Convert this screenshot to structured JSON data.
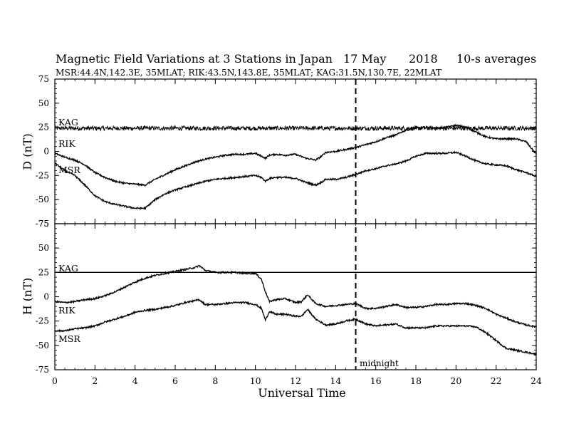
{
  "title": {
    "main": "Magnetic Field Variations at 3 Stations in Japan",
    "date": "17 May",
    "year": "2018",
    "averaging": "10-s averages"
  },
  "subtitle": "MSR:44.4N,142.3E, 35MLAT;  RIK:43.5N,143.8E, 35MLAT;  KAG:31.5N,130.7E, 22MLAT",
  "chart_data": [
    {
      "type": "line",
      "panel": "D",
      "ylabel": "D (nT)",
      "ylim": [
        -75,
        75
      ],
      "yticks": [
        "75",
        "50",
        "25",
        "0",
        "-25",
        "-50",
        "-75"
      ],
      "xlim": [
        0,
        24
      ],
      "dashed_marker_x": 15,
      "series": [
        {
          "name": "KAG",
          "noise": 2.2,
          "x": [
            0,
            24
          ],
          "y": [
            24,
            24
          ]
        },
        {
          "name": "RIK",
          "noise": 0.8,
          "x": [
            0,
            0.5,
            1,
            1.5,
            2,
            2.5,
            3,
            3.5,
            4,
            4.5,
            5,
            5.5,
            6,
            6.5,
            7,
            7.5,
            8,
            8.5,
            9,
            9.5,
            10,
            10.3,
            10.5,
            10.7,
            11,
            11.5,
            12,
            12.5,
            13,
            13.3,
            13.5,
            14,
            14.5,
            15,
            15.5,
            16,
            16.5,
            17,
            17.5,
            18,
            18.5,
            19,
            19.5,
            20,
            20.5,
            21,
            21.5,
            22,
            22.5,
            23,
            23.5,
            24
          ],
          "y": [
            -2,
            -6,
            -9,
            -14,
            -22,
            -27,
            -31,
            -33,
            -34,
            -35,
            -29,
            -24,
            -19,
            -15,
            -11,
            -8,
            -6,
            -4,
            -3,
            -3,
            -2,
            -5,
            -7,
            -4,
            -3,
            -4,
            -3,
            -7,
            -9,
            -5,
            -1,
            0,
            2,
            4,
            7,
            10,
            14,
            17,
            22,
            24,
            25,
            24,
            25,
            27,
            25,
            20,
            15,
            13,
            13,
            13,
            10,
            -3
          ]
        },
        {
          "name": "MSR",
          "noise": 0.8,
          "x": [
            0,
            0.5,
            1,
            1.5,
            2,
            2.5,
            3,
            3.5,
            4,
            4.5,
            5,
            5.5,
            6,
            6.5,
            7,
            7.5,
            8,
            8.5,
            9,
            9.5,
            10,
            10.3,
            10.5,
            10.7,
            11,
            11.5,
            12,
            12.5,
            13,
            13.3,
            13.5,
            14,
            14.5,
            15,
            15.5,
            16,
            16.5,
            17,
            17.5,
            18,
            18.5,
            19,
            19.5,
            20,
            20.5,
            21,
            21.5,
            22,
            22.5,
            23,
            23.5,
            24
          ],
          "y": [
            -12,
            -20,
            -25,
            -35,
            -46,
            -52,
            -55,
            -57,
            -59,
            -59,
            -50,
            -44,
            -40,
            -37,
            -34,
            -31,
            -29,
            -28,
            -27,
            -26,
            -25,
            -27,
            -31,
            -28,
            -27,
            -27,
            -28,
            -32,
            -35,
            -32,
            -29,
            -29,
            -27,
            -24,
            -20,
            -18,
            -15,
            -13,
            -10,
            -5,
            -2,
            -2,
            -2,
            -1,
            -5,
            -10,
            -13,
            -14,
            -15,
            -19,
            -22,
            -26
          ]
        }
      ],
      "series_labels": [
        "KAG",
        "RIK",
        "MSR"
      ]
    },
    {
      "type": "line",
      "panel": "H",
      "ylabel": "H (nT)",
      "ylim": [
        -75,
        75
      ],
      "yticks": [
        "75",
        "50",
        "25",
        "0",
        "-25",
        "-50",
        "-75"
      ],
      "xlim": [
        0,
        24
      ],
      "dashed_marker_x": 15,
      "marker_label": "midnight",
      "series": [
        {
          "name": "KAG",
          "noise": 0,
          "x": [
            0,
            24
          ],
          "y": [
            25,
            25
          ]
        },
        {
          "name": "RIK",
          "noise": 0.8,
          "x": [
            0,
            0.5,
            1,
            1.5,
            2,
            2.5,
            3,
            3.5,
            4,
            4.5,
            5,
            5.5,
            6,
            6.5,
            7,
            7.2,
            7.5,
            8,
            8.5,
            9,
            9.5,
            10,
            10.3,
            10.5,
            10.7,
            11,
            11.5,
            12,
            12.3,
            12.6,
            13,
            13.5,
            14,
            14.5,
            15,
            15.5,
            16,
            16.5,
            17,
            17.5,
            18,
            18.5,
            19,
            19.5,
            20,
            20.5,
            21,
            21.5,
            22,
            22.5,
            23,
            23.5,
            24
          ],
          "y": [
            -5,
            -6,
            -5,
            -3,
            -2,
            1,
            5,
            10,
            15,
            19,
            22,
            24,
            26,
            28,
            30,
            32,
            27,
            25,
            25,
            25,
            24,
            24,
            18,
            5,
            -5,
            -3,
            -2,
            -6,
            -5,
            2,
            -7,
            -10,
            -9,
            -8,
            -7,
            -12,
            -12,
            -10,
            -8,
            -11,
            -11,
            -10,
            -8,
            -8,
            -7,
            -7,
            -9,
            -12,
            -18,
            -22,
            -26,
            -29,
            -31
          ]
        },
        {
          "name": "MSR",
          "noise": 0.8,
          "x": [
            0,
            0.5,
            1,
            1.5,
            2,
            2.5,
            3,
            3.5,
            4,
            4.5,
            5,
            5.5,
            6,
            6.5,
            7,
            7.2,
            7.5,
            8,
            8.5,
            9,
            9.5,
            10,
            10.3,
            10.5,
            10.7,
            11,
            11.5,
            12,
            12.3,
            12.6,
            13,
            13.5,
            14,
            14.5,
            15,
            15.5,
            16,
            16.5,
            17,
            17.5,
            18,
            18.5,
            19,
            19.5,
            20,
            20.5,
            21,
            21.5,
            22,
            22.5,
            23,
            23.5,
            24
          ],
          "y": [
            -35,
            -35,
            -33,
            -32,
            -30,
            -26,
            -23,
            -20,
            -16,
            -14,
            -13,
            -11,
            -9,
            -6,
            -4,
            -3,
            -8,
            -8,
            -7,
            -6,
            -6,
            -8,
            -12,
            -24,
            -15,
            -18,
            -18,
            -20,
            -20,
            -13,
            -23,
            -29,
            -28,
            -25,
            -23,
            -28,
            -30,
            -29,
            -28,
            -32,
            -32,
            -32,
            -30,
            -30,
            -30,
            -30,
            -31,
            -37,
            -45,
            -53,
            -55,
            -57,
            -59
          ]
        }
      ],
      "series_labels": [
        "KAG",
        "RIK",
        "MSR"
      ]
    }
  ],
  "xaxis": {
    "label": "Universal Time",
    "ticks": [
      "0",
      "2",
      "4",
      "6",
      "8",
      "10",
      "12",
      "14",
      "16",
      "18",
      "20",
      "22",
      "24"
    ]
  }
}
